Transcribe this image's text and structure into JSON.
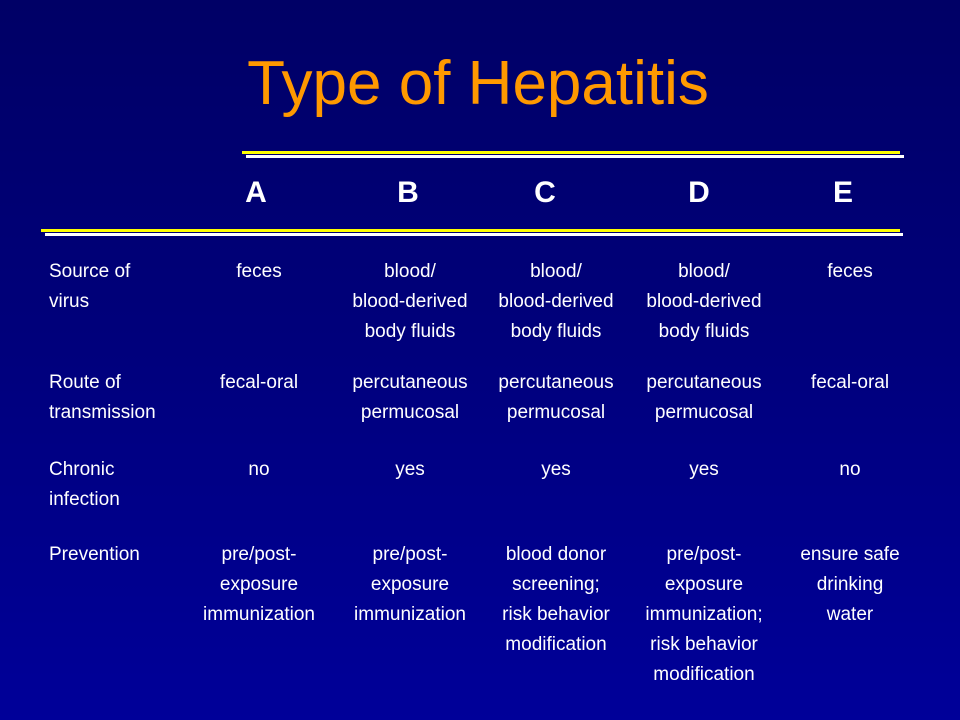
{
  "title": "Type of Hepatitis",
  "columns": [
    "A",
    "B",
    "C",
    "D",
    "E"
  ],
  "rows": [
    {
      "label": [
        "Source of",
        "virus"
      ],
      "cells": [
        [
          "feces"
        ],
        [
          "blood/",
          "blood-derived",
          "body fluids"
        ],
        [
          "blood/",
          "blood-derived",
          "body fluids"
        ],
        [
          "blood/",
          "blood-derived",
          "body fluids"
        ],
        [
          "feces"
        ]
      ]
    },
    {
      "label": [
        "Route of",
        "transmission"
      ],
      "cells": [
        [
          "fecal-oral"
        ],
        [
          "percutaneous",
          "permucosal"
        ],
        [
          "percutaneous",
          "permucosal"
        ],
        [
          "percutaneous",
          "permucosal"
        ],
        [
          "fecal-oral"
        ]
      ]
    },
    {
      "label": [
        "Chronic",
        "infection"
      ],
      "cells": [
        [
          "no"
        ],
        [
          "yes"
        ],
        [
          "yes"
        ],
        [
          "yes"
        ],
        [
          "no"
        ]
      ]
    },
    {
      "label": [
        "Prevention"
      ],
      "cells": [
        [
          "pre/post-",
          "exposure",
          "immunization"
        ],
        [
          "pre/post-",
          "exposure",
          "immunization"
        ],
        [
          "blood donor",
          "screening;",
          "risk behavior",
          "modification"
        ],
        [
          "pre/post-",
          "exposure",
          "immunization;",
          "risk behavior",
          "modification"
        ],
        [
          "ensure safe",
          "drinking",
          "water"
        ]
      ]
    }
  ],
  "colors": {
    "title": "#FF9900",
    "rule_yellow": "#FFFF00",
    "rule_white": "#FFFFFF",
    "background_top": "#000066",
    "background_bottom": "#000099"
  }
}
